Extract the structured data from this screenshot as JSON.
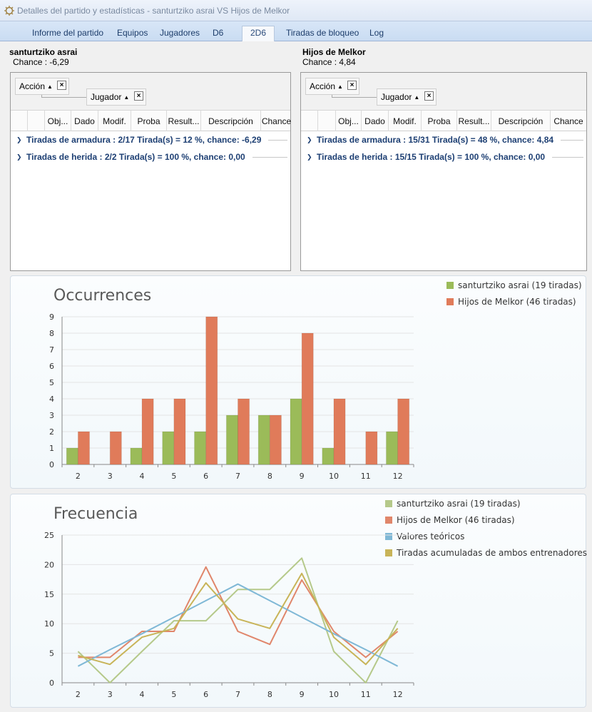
{
  "window": {
    "title": "Detalles del partido y estadísticas - santurtziko asrai VS Hijos de Melkor"
  },
  "tabs": [
    {
      "label": "Informe del partido"
    },
    {
      "label": "Equipos"
    },
    {
      "label": "Jugadores"
    },
    {
      "label": "D6"
    },
    {
      "label": "2D6",
      "active": true
    },
    {
      "label": "Tiradas de bloqueo"
    },
    {
      "label": "Log"
    }
  ],
  "teams": [
    {
      "name": "santurtziko asrai",
      "chance": "Chance : -6,29",
      "group_chips": [
        "Acción",
        "Jugador"
      ],
      "columns": [
        "Obj...",
        "Dado",
        "Modif.",
        "Proba",
        "Result...",
        "Descripción",
        "Chance"
      ],
      "groups": [
        "Tiradas de armadura :  2/17 Tirada(s) = 12 %, chance: -6,29",
        "Tiradas de herida :  2/2 Tirada(s) = 100 %, chance: 0,00"
      ]
    },
    {
      "name": "Hijos de Melkor",
      "chance": "Chance : 4,84",
      "group_chips": [
        "Acción",
        "Jugador"
      ],
      "columns": [
        "Obj...",
        "Dado",
        "Modif.",
        "Proba",
        "Result...",
        "Descripción",
        "Chance"
      ],
      "groups": [
        "Tiradas de armadura :  15/31 Tirada(s) = 48 %, chance: 4,84",
        "Tiradas de herida :  15/15 Tirada(s) = 100 %, chance: 0,00"
      ]
    }
  ],
  "colors": {
    "green_bar": "#9bbb59",
    "orange_bar": "#e07b5a",
    "line_green": "#b5c98a",
    "line_orange": "#e0866b",
    "line_blue": "#7fb8d6",
    "line_gold": "#c8b458"
  },
  "chart_data": [
    {
      "type": "bar",
      "title": "Occurrences",
      "categories": [
        "2",
        "3",
        "4",
        "5",
        "6",
        "7",
        "8",
        "9",
        "10",
        "11",
        "12"
      ],
      "series": [
        {
          "name": "santurtziko asrai (19 tiradas)",
          "values": [
            1,
            0,
            1,
            2,
            2,
            3,
            3,
            4,
            1,
            0,
            2
          ]
        },
        {
          "name": "Hijos de Melkor (46 tiradas)",
          "values": [
            2,
            2,
            4,
            4,
            9,
            4,
            3,
            8,
            4,
            2,
            4
          ]
        }
      ],
      "ylim": [
        0,
        9
      ],
      "yticks": [
        "0",
        "1",
        "2",
        "3",
        "4",
        "5",
        "6",
        "7",
        "8",
        "9"
      ],
      "legend": "top-right",
      "grid": true
    },
    {
      "type": "line",
      "title": "Frecuencia",
      "categories": [
        "2",
        "3",
        "4",
        "5",
        "6",
        "7",
        "8",
        "9",
        "10",
        "11",
        "12"
      ],
      "series": [
        {
          "name": "santurtziko asrai (19 tiradas)",
          "values": [
            5.3,
            0,
            5.3,
            10.5,
            10.5,
            15.8,
            15.8,
            21.1,
            5.3,
            0,
            10.5
          ]
        },
        {
          "name": "Hijos de Melkor (46 tiradas)",
          "values": [
            4.3,
            4.3,
            8.7,
            8.7,
            19.6,
            8.7,
            6.5,
            17.4,
            8.7,
            4.3,
            8.7
          ]
        },
        {
          "name": "Valores teóricos",
          "values": [
            2.8,
            5.6,
            8.3,
            11.1,
            13.9,
            16.7,
            13.9,
            11.1,
            8.3,
            5.6,
            2.8
          ]
        },
        {
          "name": "Tiradas acumuladas de ambos entrenadores",
          "values": [
            4.6,
            3.1,
            7.7,
            9.2,
            16.9,
            10.8,
            9.2,
            18.5,
            7.7,
            3.1,
            9.2
          ]
        }
      ],
      "ylim": [
        0,
        25
      ],
      "yticks": [
        "0",
        "5",
        "10",
        "15",
        "20",
        "25"
      ],
      "legend": "top-right",
      "grid": true
    }
  ]
}
